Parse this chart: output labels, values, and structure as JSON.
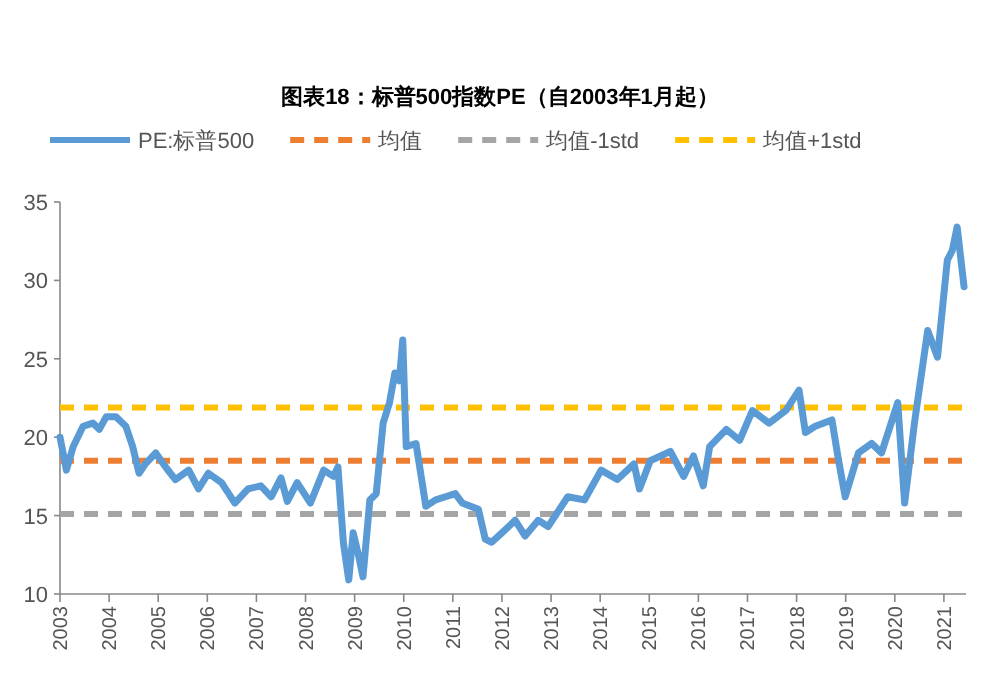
{
  "chart_data": {
    "type": "line",
    "title": "图表18：标普500指数PE（自2003年1月起）",
    "x": [
      2003.0,
      2003.13,
      2003.27,
      2003.47,
      2003.67,
      2003.8,
      2003.94,
      2004.14,
      2004.34,
      2004.48,
      2004.61,
      2004.74,
      2004.95,
      2005.15,
      2005.35,
      2005.62,
      2005.82,
      2006.02,
      2006.29,
      2006.56,
      2006.83,
      2007.09,
      2007.3,
      2007.5,
      2007.63,
      2007.83,
      2008.1,
      2008.37,
      2008.57,
      2008.66,
      2008.77,
      2008.88,
      2008.97,
      2009.07,
      2009.17,
      2009.31,
      2009.44,
      2009.58,
      2009.71,
      2009.82,
      2009.91,
      2009.98,
      2010.05,
      2010.25,
      2010.45,
      2010.65,
      2010.85,
      2011.05,
      2011.19,
      2011.52,
      2011.66,
      2011.79,
      2012.0,
      2012.27,
      2012.47,
      2012.74,
      2012.94,
      2013.34,
      2013.68,
      2014.02,
      2014.35,
      2014.69,
      2014.8,
      2015.02,
      2015.43,
      2015.7,
      2015.9,
      2016.1,
      2016.23,
      2016.57,
      2016.84,
      2017.1,
      2017.44,
      2017.78,
      2018.05,
      2018.18,
      2018.38,
      2018.72,
      2018.85,
      2018.99,
      2019.26,
      2019.53,
      2019.73,
      2020.06,
      2020.2,
      2020.4,
      2020.67,
      2020.87,
      2021.07,
      2021.17,
      2021.27,
      2021.41
    ],
    "series": [
      {
        "name": "PE:标普500",
        "color": "#5b9bd5",
        "values": [
          20.0,
          17.9,
          19.4,
          20.7,
          20.9,
          20.5,
          21.3,
          21.3,
          20.7,
          19.4,
          17.7,
          18.3,
          19.0,
          18.1,
          17.3,
          17.9,
          16.7,
          17.7,
          17.1,
          15.8,
          16.7,
          16.9,
          16.2,
          17.4,
          15.9,
          17.1,
          15.8,
          17.9,
          17.5,
          18.1,
          13.3,
          10.9,
          13.9,
          12.6,
          11.1,
          16.0,
          16.4,
          20.9,
          22.2,
          24.1,
          23.6,
          26.2,
          19.4,
          19.6,
          15.6,
          16.0,
          16.2,
          16.4,
          15.8,
          15.4,
          13.5,
          13.3,
          13.9,
          14.7,
          13.7,
          14.7,
          14.3,
          16.2,
          16.0,
          17.9,
          17.3,
          18.3,
          16.7,
          18.5,
          19.1,
          17.5,
          18.8,
          16.9,
          19.4,
          20.5,
          19.8,
          21.7,
          20.9,
          21.7,
          23.0,
          20.3,
          20.7,
          21.1,
          18.6,
          16.2,
          19.0,
          19.6,
          19.0,
          22.2,
          15.8,
          20.9,
          26.8,
          25.1,
          31.3,
          31.9,
          33.4,
          29.6
        ]
      }
    ],
    "ref_lines": [
      {
        "axis": "y",
        "value": 18.5,
        "label": "均值",
        "color": "#ed7d31",
        "line_style": "dashed"
      },
      {
        "axis": "y",
        "value": 15.1,
        "label": "均值-1std",
        "color": "#a5a5a5",
        "line_style": "dashed"
      },
      {
        "axis": "y",
        "value": 21.9,
        "label": "均值+1std",
        "color": "#ffc000",
        "line_style": "dashed"
      }
    ],
    "xlim": [
      2003,
      2021.45
    ],
    "xticks": [
      2003,
      2004,
      2005,
      2006,
      2007,
      2008,
      2009,
      2010,
      2011,
      2012,
      2013,
      2014,
      2015,
      2016,
      2017,
      2018,
      2019,
      2020,
      2021
    ],
    "ylim": [
      10,
      35
    ],
    "yticks": [
      10,
      15,
      20,
      25,
      30,
      35
    ],
    "legend": "top",
    "grid": false,
    "marker": "none",
    "line_style": "solid"
  }
}
